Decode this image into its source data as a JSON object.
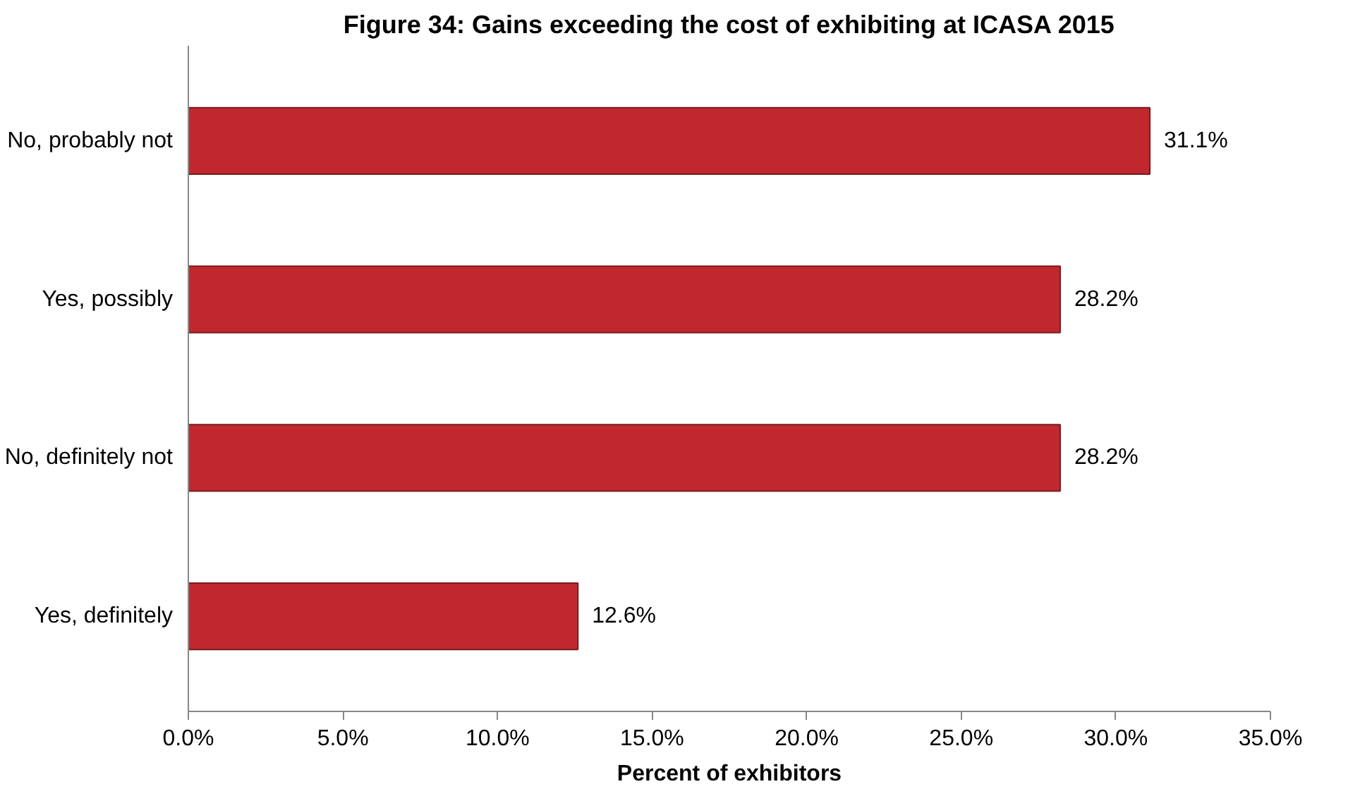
{
  "chart_data": {
    "type": "bar",
    "orientation": "horizontal",
    "title": "Figure 34: Gains exceeding the cost of exhibiting at ICASA 2015",
    "xlabel": "Percent of exhibitors",
    "categories": [
      "No, probably not",
      "Yes, possibly",
      "No, definitely not",
      "Yes, definitely"
    ],
    "values": [
      31.1,
      28.2,
      28.2,
      12.6
    ],
    "value_labels": [
      "31.1%",
      "28.2%",
      "28.2%",
      "12.6%"
    ],
    "color": "#c0282e",
    "xlim": [
      0,
      35
    ],
    "xticks": [
      {
        "value": 0,
        "label": "0.0%"
      },
      {
        "value": 5,
        "label": "5.0%"
      },
      {
        "value": 10,
        "label": "10.0%"
      },
      {
        "value": 15,
        "label": "15.0%"
      },
      {
        "value": 20,
        "label": "20.0%"
      },
      {
        "value": 25,
        "label": "25.0%"
      },
      {
        "value": 30,
        "label": "30.0%"
      },
      {
        "value": 35,
        "label": "35.0%"
      }
    ],
    "grid": false
  }
}
